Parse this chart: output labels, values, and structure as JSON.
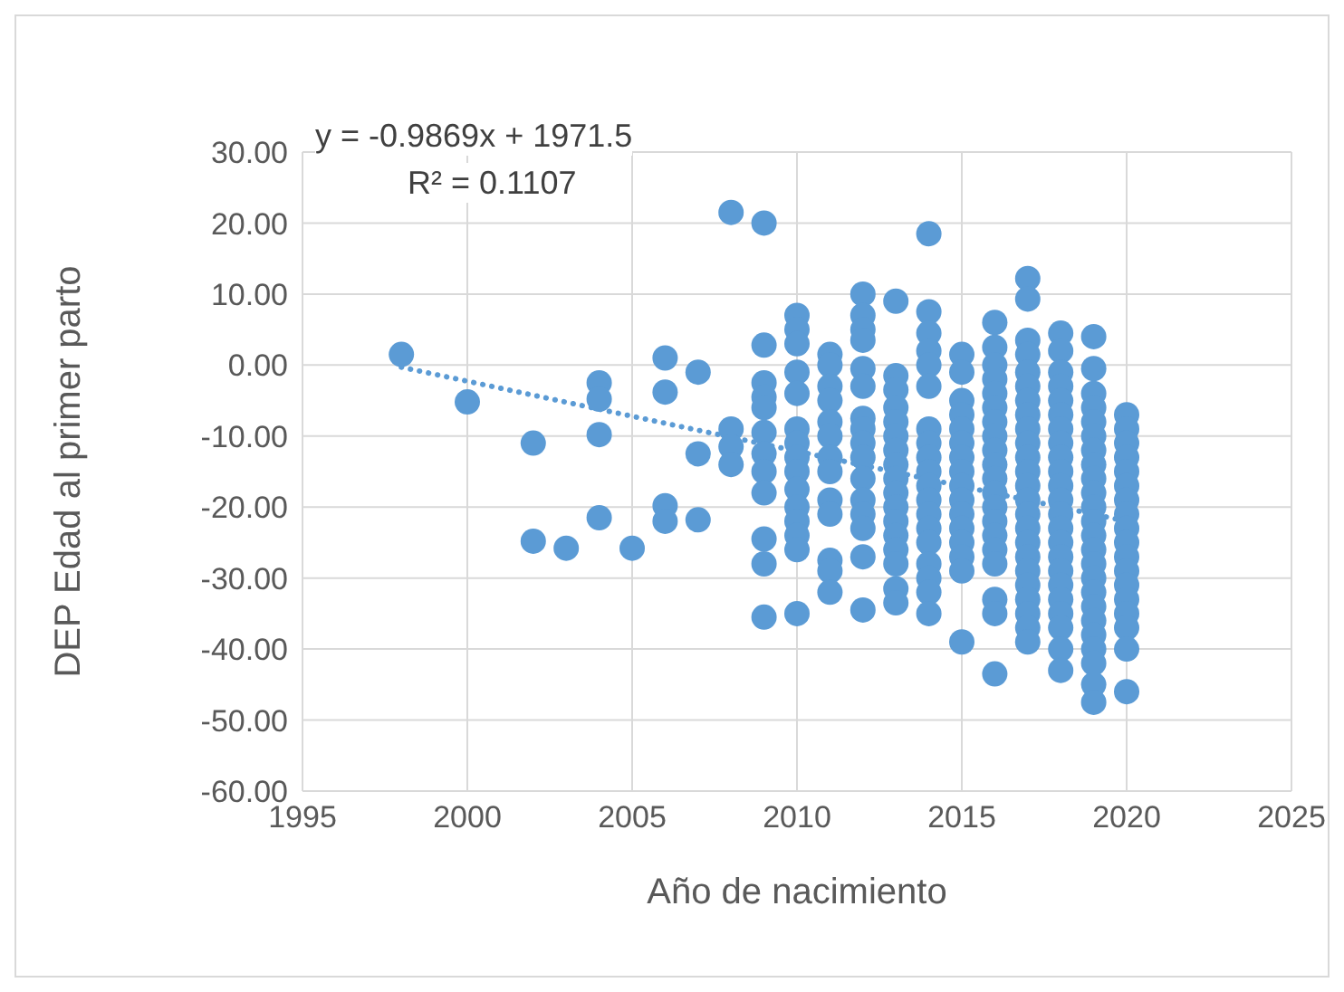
{
  "chart_data": {
    "type": "scatter",
    "xlabel": "Año de nacimiento",
    "ylabel": "DEP Edad al primer parto",
    "annotations": [
      "y = -0.9869x + 1971.5",
      "R² = 0.1107"
    ],
    "xlim": [
      1995,
      2025
    ],
    "xticks": [
      1995,
      2000,
      2005,
      2010,
      2015,
      2020,
      2025
    ],
    "ylim": [
      -60,
      30
    ],
    "yticks": [
      {
        "value": -60,
        "label": "-60.00"
      },
      {
        "value": -50,
        "label": "-50.00"
      },
      {
        "value": -40,
        "label": "-40.00"
      },
      {
        "value": -30,
        "label": "-30.00"
      },
      {
        "value": -20,
        "label": "-20.00"
      },
      {
        "value": -10,
        "label": "-10.00"
      },
      {
        "value": 0,
        "label": "0.00"
      },
      {
        "value": 10,
        "label": "10.00"
      },
      {
        "value": 20,
        "label": "20.00"
      },
      {
        "value": 30,
        "label": "30.00"
      }
    ],
    "grid": true,
    "legend": false,
    "marker": "circle",
    "series": [
      {
        "type": "line",
        "line_style": "dotted",
        "marker": "none",
        "color": "#5b9bd5",
        "x": [
          1998,
          2020
        ],
        "values": [
          -0.3,
          -22.0
        ]
      },
      {
        "color": "#5b9bd5",
        "x": [
          1998
        ],
        "values": [
          1.5
        ]
      },
      {
        "color": "#5b9bd5",
        "x": [
          2000
        ],
        "values": [
          -5.2
        ]
      },
      {
        "color": "#5b9bd5",
        "x": [
          2002,
          2002
        ],
        "values": [
          -11,
          -24.8
        ]
      },
      {
        "color": "#5b9bd5",
        "x": [
          2003
        ],
        "values": [
          -25.8
        ]
      },
      {
        "color": "#5b9bd5",
        "x": [
          2004,
          2004,
          2004,
          2004
        ],
        "values": [
          -2.5,
          -4.8,
          -9.8,
          -21.5
        ]
      },
      {
        "color": "#5b9bd5",
        "x": [
          2005
        ],
        "values": [
          -25.8
        ]
      },
      {
        "color": "#5b9bd5",
        "x": [
          2006,
          2006,
          2006,
          2006
        ],
        "values": [
          1,
          -3.8,
          -19.8,
          -22
        ]
      },
      {
        "color": "#5b9bd5",
        "x": [
          2007,
          2007,
          2007
        ],
        "values": [
          -1,
          -12.5,
          -21.8
        ]
      },
      {
        "color": "#5b9bd5",
        "x": [
          2008,
          2008,
          2008,
          2008
        ],
        "values": [
          21.5,
          -9,
          -11.5,
          -14
        ]
      },
      {
        "color": "#5b9bd5",
        "x": [
          2009,
          2009,
          2009,
          2009,
          2009,
          2009,
          2009,
          2009,
          2009,
          2009,
          2009,
          2009
        ],
        "values": [
          20,
          2.8,
          -2.5,
          -4.5,
          -6,
          -9.5,
          -12.5,
          -15,
          -18,
          -24.5,
          -28,
          -35.5
        ]
      },
      {
        "color": "#5b9bd5",
        "x": [
          2010,
          2010,
          2010,
          2010,
          2010,
          2010,
          2010,
          2010,
          2010,
          2010,
          2010,
          2010,
          2010,
          2010,
          2010
        ],
        "values": [
          7,
          5,
          3,
          -1,
          -4,
          -9,
          -11,
          -13,
          -15,
          -17.5,
          -20,
          -22,
          -24,
          -26,
          -35
        ]
      },
      {
        "color": "#5b9bd5",
        "x": [
          2011,
          2011,
          2011,
          2011,
          2011,
          2011,
          2011,
          2011,
          2011,
          2011,
          2011,
          2011,
          2011
        ],
        "values": [
          1.5,
          0,
          -3,
          -5,
          -8,
          -10,
          -13,
          -15,
          -19,
          -21,
          -27.5,
          -29,
          -32
        ]
      },
      {
        "color": "#5b9bd5",
        "x": [
          2012,
          2012,
          2012,
          2012,
          2012,
          2012,
          2012,
          2012,
          2012,
          2012,
          2012,
          2012,
          2012,
          2012,
          2012,
          2012
        ],
        "values": [
          10,
          7,
          5,
          3.5,
          -0.5,
          -3,
          -7.5,
          -9,
          -11,
          -13,
          -16,
          -19,
          -21,
          -23,
          -27,
          -34.5
        ]
      },
      {
        "color": "#5b9bd5",
        "x": [
          2013,
          2013,
          2013,
          2013,
          2013,
          2013,
          2013,
          2013,
          2013,
          2013,
          2013,
          2013,
          2013,
          2013,
          2013,
          2013,
          2013
        ],
        "values": [
          9,
          -1.5,
          -3.5,
          -6,
          -8,
          -10,
          -12,
          -14,
          -16,
          -18,
          -20,
          -22,
          -24,
          -26,
          -28,
          -31.5,
          -33.5
        ]
      },
      {
        "color": "#5b9bd5",
        "x": [
          2014,
          2014,
          2014,
          2014,
          2014,
          2014,
          2014,
          2014,
          2014,
          2014,
          2014,
          2014,
          2014,
          2014,
          2014,
          2014,
          2014,
          2014,
          2014
        ],
        "values": [
          18.5,
          7.5,
          4.5,
          2,
          0,
          -3,
          -9,
          -11,
          -13,
          -15,
          -17,
          -19,
          -21,
          -23,
          -25,
          -28,
          -30,
          -32,
          -35
        ]
      },
      {
        "color": "#5b9bd5",
        "x": [
          2015,
          2015,
          2015,
          2015,
          2015,
          2015,
          2015,
          2015,
          2015,
          2015,
          2015,
          2015,
          2015,
          2015,
          2015,
          2015
        ],
        "values": [
          1.5,
          -1,
          -5,
          -7,
          -9,
          -11,
          -13,
          -15,
          -17,
          -19,
          -21,
          -23,
          -25,
          -27,
          -29,
          -39
        ]
      },
      {
        "color": "#5b9bd5",
        "x": [
          2016,
          2016,
          2016,
          2016,
          2016,
          2016,
          2016,
          2016,
          2016,
          2016,
          2016,
          2016,
          2016,
          2016,
          2016,
          2016,
          2016,
          2016,
          2016,
          2016
        ],
        "values": [
          6,
          2.5,
          0,
          -2,
          -4,
          -6,
          -8,
          -10,
          -12,
          -14,
          -16,
          -18,
          -20,
          -22,
          -24,
          -26,
          -28,
          -33,
          -35,
          -43.5
        ]
      },
      {
        "color": "#5b9bd5",
        "x": [
          2017,
          2017,
          2017,
          2017,
          2017,
          2017,
          2017,
          2017,
          2017,
          2017,
          2017,
          2017,
          2017,
          2017,
          2017,
          2017,
          2017,
          2017,
          2017,
          2017,
          2017,
          2017,
          2017,
          2017
        ],
        "values": [
          12.2,
          9.3,
          3.5,
          1.5,
          -1,
          -3,
          -5,
          -7,
          -9,
          -11,
          -13,
          -15,
          -17,
          -19,
          -21,
          -23,
          -25,
          -27,
          -29,
          -31,
          -33,
          -35,
          -37,
          -39
        ]
      },
      {
        "color": "#5b9bd5",
        "x": [
          2018,
          2018,
          2018,
          2018,
          2018,
          2018,
          2018,
          2018,
          2018,
          2018,
          2018,
          2018,
          2018,
          2018,
          2018,
          2018,
          2018,
          2018,
          2018,
          2018,
          2018,
          2018,
          2018
        ],
        "values": [
          4.5,
          2,
          -1,
          -3,
          -5,
          -7,
          -9,
          -11,
          -13,
          -15,
          -17,
          -19,
          -21,
          -23,
          -25,
          -27,
          -29,
          -31,
          -33,
          -35,
          -37,
          -40,
          -43
        ]
      },
      {
        "color": "#5b9bd5",
        "x": [
          2019,
          2019,
          2019,
          2019,
          2019,
          2019,
          2019,
          2019,
          2019,
          2019,
          2019,
          2019,
          2019,
          2019,
          2019,
          2019,
          2019,
          2019,
          2019,
          2019,
          2019,
          2019,
          2019,
          2019
        ],
        "values": [
          4,
          -0.5,
          -4,
          -6,
          -8,
          -10,
          -12,
          -14,
          -16,
          -18,
          -20,
          -22,
          -24,
          -26,
          -28,
          -30,
          -32,
          -34,
          -36,
          -38,
          -40,
          -42,
          -45,
          -47.5
        ]
      },
      {
        "color": "#5b9bd5",
        "x": [
          2020,
          2020,
          2020,
          2020,
          2020,
          2020,
          2020,
          2020,
          2020,
          2020,
          2020,
          2020,
          2020,
          2020,
          2020,
          2020,
          2020,
          2020
        ],
        "values": [
          -7,
          -9,
          -11,
          -13,
          -15,
          -17,
          -19,
          -21,
          -23,
          -25,
          -27,
          -29,
          -31,
          -33,
          -35,
          -37,
          -40,
          -46
        ]
      }
    ]
  }
}
